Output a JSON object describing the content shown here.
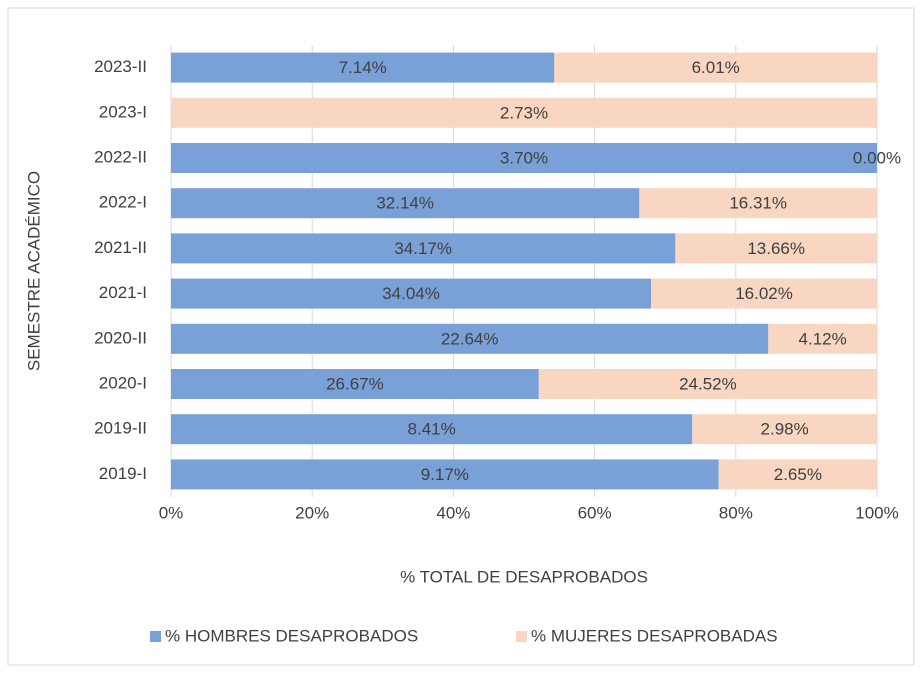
{
  "chart_data": {
    "type": "bar",
    "orientation": "horizontal",
    "stacking": "percent",
    "y_label": "SEMESTRE ACADÉMICO",
    "x_label": "% TOTAL DE DESAPROBADOS",
    "categories": [
      "2019-I",
      "2019-II",
      "2020-I",
      "2020-II",
      "2021-I",
      "2021-II",
      "2022-I",
      "2022-II",
      "2023-I",
      "2023-II"
    ],
    "series": [
      {
        "name": "% HOMBRES DESAPROBADOS",
        "color": "#7aa0d8",
        "values": [
          9.17,
          8.41,
          26.67,
          22.64,
          34.04,
          34.17,
          32.14,
          3.7,
          0,
          7.14
        ],
        "value_labels": [
          "9.17%",
          "8.41%",
          "26.67%",
          "22.64%",
          "34.04%",
          "34.17%",
          "32.14%",
          "3.70%",
          null,
          "7.14%"
        ]
      },
      {
        "name": "% MUJERES DESAPROBADAS",
        "color": "#f9d6c1",
        "values": [
          2.65,
          2.98,
          24.52,
          4.12,
          16.02,
          13.66,
          16.31,
          0.0,
          2.73,
          6.01
        ],
        "value_labels": [
          "2.65%",
          "2.98%",
          "24.52%",
          "4.12%",
          "16.02%",
          "13.66%",
          "16.31%",
          "0.00%",
          "2.73%",
          "6.01%"
        ]
      }
    ],
    "xlim": [
      0,
      100
    ],
    "xticks": [
      {
        "value": 0,
        "label": "0%"
      },
      {
        "value": 20,
        "label": "20%"
      },
      {
        "value": 40,
        "label": "40%"
      },
      {
        "value": 60,
        "label": "60%"
      },
      {
        "value": 80,
        "label": "80%"
      },
      {
        "value": 100,
        "label": "100%"
      }
    ],
    "grid": true,
    "legend": "bottom"
  }
}
